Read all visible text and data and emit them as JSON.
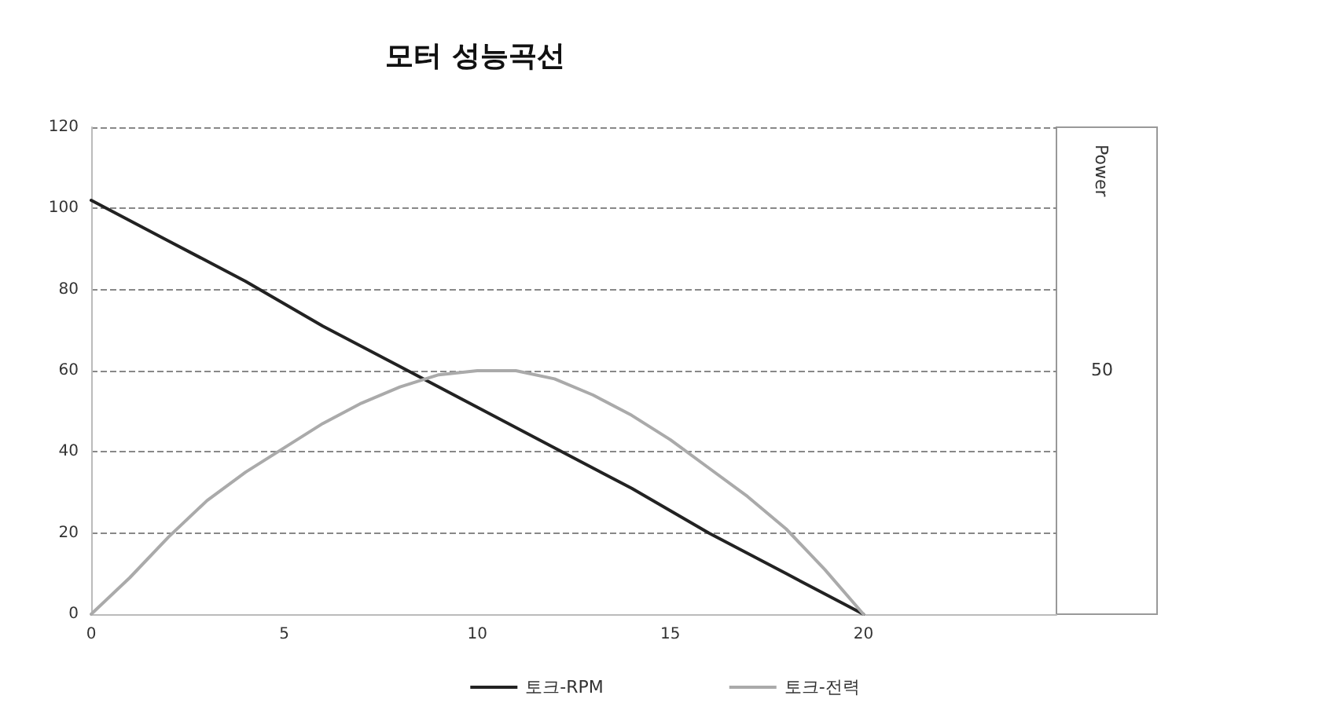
{
  "chart_data": {
    "type": "line",
    "title": "모터 성능곡선",
    "xlim": [
      0,
      25
    ],
    "xticks": [
      0,
      5,
      10,
      15,
      20
    ],
    "ylim": [
      0,
      120
    ],
    "yticks": [
      0,
      20,
      40,
      60,
      80,
      100,
      120
    ],
    "grid": "y",
    "legend": "bottom",
    "marker": "none",
    "line_style": "solid",
    "annotations": [
      "Power",
      "50"
    ],
    "series": [
      {
        "name": "토크-RPM",
        "color": "#222222",
        "x": [
          0,
          2,
          4,
          6,
          8,
          10,
          12,
          14,
          16,
          18,
          20
        ],
        "values": [
          102,
          92,
          82,
          71,
          61,
          51,
          41,
          31,
          20,
          10,
          0
        ]
      },
      {
        "name": "토크-전력",
        "color": "#aaaaaa",
        "x": [
          0,
          1,
          2,
          3,
          4,
          5,
          6,
          7,
          8,
          9,
          10,
          11,
          12,
          13,
          14,
          15,
          16,
          17,
          18,
          19,
          20
        ],
        "values": [
          0,
          9,
          19,
          28,
          35,
          41,
          47,
          52,
          56,
          59,
          60,
          60,
          58,
          54,
          49,
          43,
          36,
          29,
          21,
          11,
          0
        ]
      }
    ]
  }
}
